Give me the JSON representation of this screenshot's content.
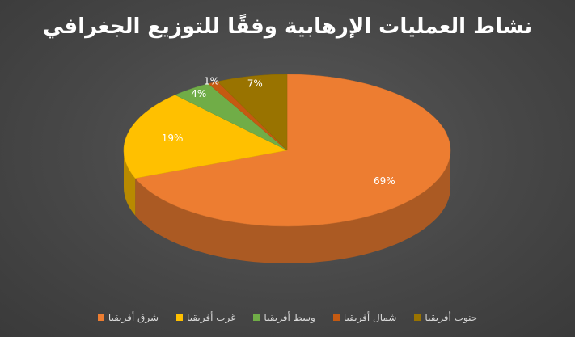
{
  "chart_data": {
    "type": "pie",
    "title": "نشاط العمليات الإرهابية وفقًا للتوزيع الجغرافي",
    "categories": [
      "شرق أفريقيا",
      "غرب أفريقيا",
      "وسط أفريقيا",
      "شمال أفريقيا",
      "جنوب أفريقيا"
    ],
    "values": [
      69,
      19,
      4,
      1,
      7
    ],
    "data_labels": [
      "69%",
      "19%",
      "4%",
      "1%",
      "7%"
    ],
    "colors": [
      "#ED7D31",
      "#FFC000",
      "#70AD47",
      "#C55A11",
      "#997300"
    ],
    "legend_position": "bottom",
    "style": "3d"
  }
}
